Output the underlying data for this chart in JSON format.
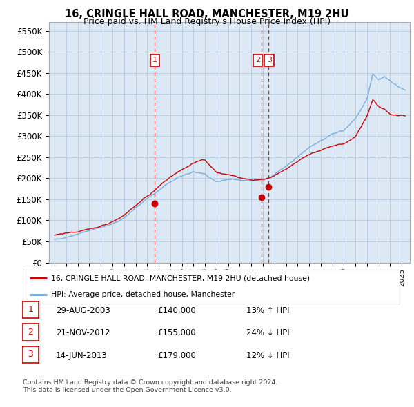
{
  "title1": "16, CRINGLE HALL ROAD, MANCHESTER, M19 2HU",
  "title2": "Price paid vs. HM Land Registry's House Price Index (HPI)",
  "legend_line1": "16, CRINGLE HALL ROAD, MANCHESTER, M19 2HU (detached house)",
  "legend_line2": "HPI: Average price, detached house, Manchester",
  "footer1": "Contains HM Land Registry data © Crown copyright and database right 2024.",
  "footer2": "This data is licensed under the Open Government Licence v3.0.",
  "sale_dates": [
    "29-AUG-2003",
    "21-NOV-2012",
    "14-JUN-2013"
  ],
  "sale_prices": [
    140000,
    155000,
    179000
  ],
  "sale_hpi_pct": [
    "13% ↑ HPI",
    "24% ↓ HPI",
    "12% ↓ HPI"
  ],
  "sale_years": [
    2003.66,
    2012.9,
    2013.45
  ],
  "red_line_color": "#cc0000",
  "blue_line_color": "#7aaddb",
  "vline_color": "#cc0000",
  "ylim": [
    0,
    570000
  ],
  "yticks": [
    0,
    50000,
    100000,
    150000,
    200000,
    250000,
    300000,
    350000,
    400000,
    450000,
    500000,
    550000
  ],
  "chart_bg": "#dce9f5",
  "background_color": "#ffffff",
  "grid_color": "#b8cfe8"
}
